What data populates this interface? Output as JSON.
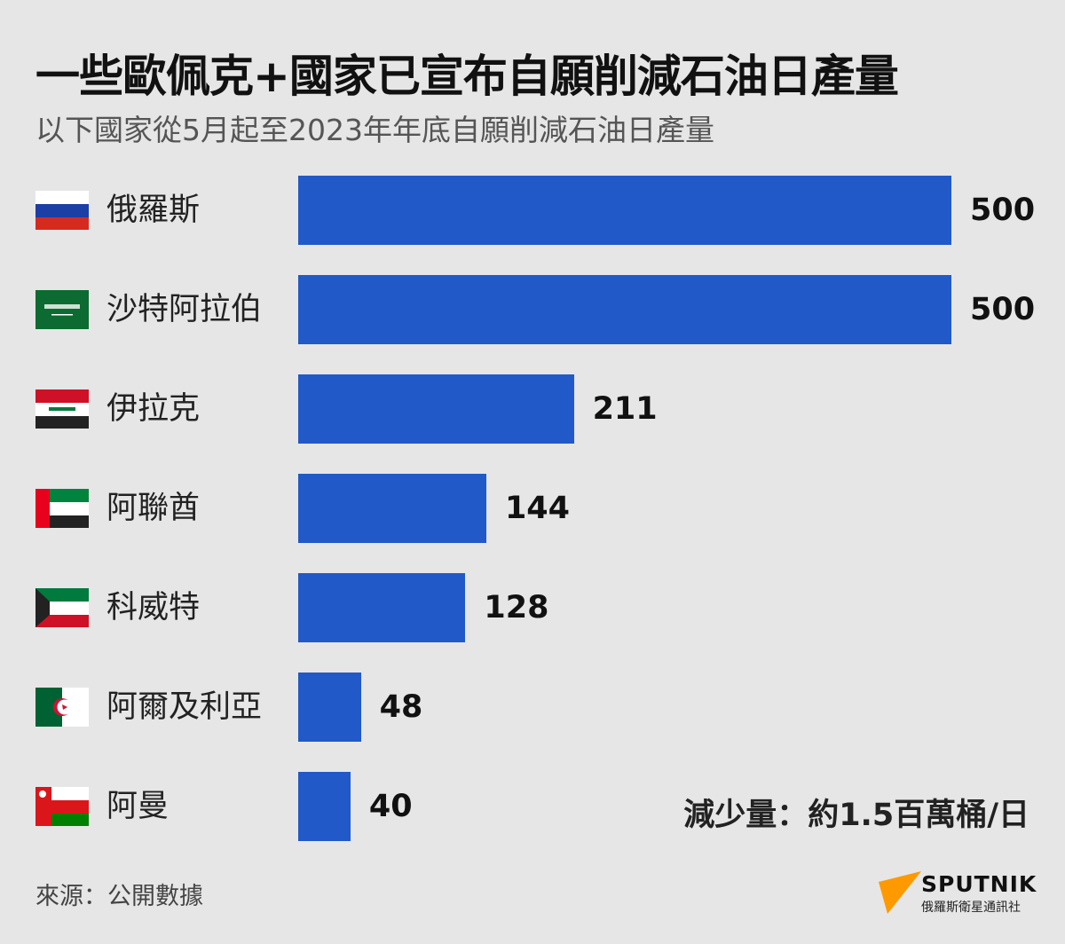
{
  "chart_data": {
    "type": "bar",
    "orientation": "horizontal",
    "title": "一些歐佩克+國家已宣布自願削減石油日產量",
    "subtitle": "以下國家從5月起至2023年年底自願削減石油日產量",
    "categories": [
      "俄羅斯",
      "沙特阿拉伯",
      "伊拉克",
      "阿聯酋",
      "科威特",
      "阿爾及利亞",
      "阿曼"
    ],
    "values": [
      500,
      500,
      211,
      144,
      128,
      48,
      40
    ],
    "flags": [
      "russia-flag",
      "saudi-arabia-flag",
      "iraq-flag",
      "uae-flag",
      "kuwait-flag",
      "algeria-flag",
      "oman-flag"
    ],
    "bar_color": "#2159c8",
    "xlim": [
      0,
      500
    ],
    "grid": false,
    "data_labels": true
  },
  "total": "減少量：約1.5百萬桶/日",
  "source": "來源：公開數據",
  "logo": {
    "word": "SPUTNIK",
    "sub": "俄羅斯衛星通訊社",
    "color": "#ff9900"
  }
}
